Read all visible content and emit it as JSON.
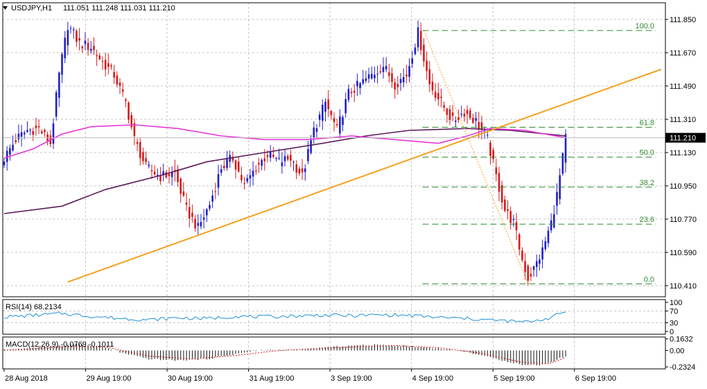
{
  "header": {
    "symbol_text": "USDJPY,H1",
    "ohlc_text": "111.051 111.248 111.031 111.210"
  },
  "colors": {
    "bull": "#1f1fc8",
    "bear": "#d61a1a",
    "ma_fast": "#e636d8",
    "ma_slow": "#5a1a5a",
    "trendline": "#f5a020",
    "fib": "#2f8a2f",
    "rsi": "#1e8fd8",
    "macd_signal": "#d61a1a",
    "macd_hist": "#111111",
    "price_box": "#000000"
  },
  "chart_data": [
    {
      "type": "candlestick",
      "symbol": "USDJPY",
      "timeframe": "H1",
      "ylim": [
        110.35,
        111.94
      ],
      "y_ticks": [
        "111.850",
        "111.670",
        "111.490",
        "111.310",
        "111.130",
        "110.950",
        "110.770",
        "110.590",
        "110.410"
      ],
      "x_ticks": [
        "28 Aug 2018",
        "29 Aug 19:00",
        "30 Aug 19:00",
        "31 Aug 19:00",
        "3 Sep 19:00",
        "4 Sep 19:00",
        "5 Sep 19:00",
        "6 Sep 19:00"
      ],
      "current_price": "111.210",
      "close_series": [
        {
          "bar": 0,
          "value": 111.1
        },
        {
          "bar": 4,
          "value": 111.2
        },
        {
          "bar": 8,
          "value": 111.25
        },
        {
          "bar": 12,
          "value": 111.26
        },
        {
          "bar": 16,
          "value": 111.18
        },
        {
          "bar": 19,
          "value": 111.55
        },
        {
          "bar": 22,
          "value": 111.82
        },
        {
          "bar": 26,
          "value": 111.72
        },
        {
          "bar": 30,
          "value": 111.7
        },
        {
          "bar": 34,
          "value": 111.62
        },
        {
          "bar": 38,
          "value": 111.55
        },
        {
          "bar": 42,
          "value": 111.4
        },
        {
          "bar": 45,
          "value": 111.2
        },
        {
          "bar": 49,
          "value": 111.05
        },
        {
          "bar": 54,
          "value": 111.0
        },
        {
          "bar": 59,
          "value": 111.02
        },
        {
          "bar": 63,
          "value": 110.82
        },
        {
          "bar": 67,
          "value": 110.72
        },
        {
          "bar": 71,
          "value": 110.85
        },
        {
          "bar": 75,
          "value": 111.05
        },
        {
          "bar": 79,
          "value": 111.1
        },
        {
          "bar": 83,
          "value": 110.95
        },
        {
          "bar": 87,
          "value": 111.05
        },
        {
          "bar": 91,
          "value": 111.12
        },
        {
          "bar": 95,
          "value": 111.08
        },
        {
          "bar": 99,
          "value": 111.1
        },
        {
          "bar": 103,
          "value": 111.0
        },
        {
          "bar": 107,
          "value": 111.25
        },
        {
          "bar": 111,
          "value": 111.4
        },
        {
          "bar": 115,
          "value": 111.25
        },
        {
          "bar": 119,
          "value": 111.45
        },
        {
          "bar": 123,
          "value": 111.5
        },
        {
          "bar": 127,
          "value": 111.55
        },
        {
          "bar": 131,
          "value": 111.6
        },
        {
          "bar": 135,
          "value": 111.5
        },
        {
          "bar": 139,
          "value": 111.55
        },
        {
          "bar": 143,
          "value": 111.78
        },
        {
          "bar": 147,
          "value": 111.5
        },
        {
          "bar": 151,
          "value": 111.4
        },
        {
          "bar": 155,
          "value": 111.3
        },
        {
          "bar": 159,
          "value": 111.35
        },
        {
          "bar": 163,
          "value": 111.3
        },
        {
          "bar": 167,
          "value": 111.2
        },
        {
          "bar": 170,
          "value": 111.0
        },
        {
          "bar": 173,
          "value": 110.82
        },
        {
          "bar": 176,
          "value": 110.75
        },
        {
          "bar": 179,
          "value": 110.55
        },
        {
          "bar": 181,
          "value": 110.45
        },
        {
          "bar": 183,
          "value": 110.5
        },
        {
          "bar": 186,
          "value": 110.6
        },
        {
          "bar": 189,
          "value": 110.75
        },
        {
          "bar": 191,
          "value": 110.9
        },
        {
          "bar": 193,
          "value": 111.1
        },
        {
          "bar": 194,
          "value": 111.21
        }
      ],
      "sma_fast": [
        {
          "bar": 0,
          "value": 111.1
        },
        {
          "bar": 10,
          "value": 111.15
        },
        {
          "bar": 20,
          "value": 111.23
        },
        {
          "bar": 30,
          "value": 111.27
        },
        {
          "bar": 45,
          "value": 111.28
        },
        {
          "bar": 60,
          "value": 111.26
        },
        {
          "bar": 75,
          "value": 111.22
        },
        {
          "bar": 90,
          "value": 111.2
        },
        {
          "bar": 105,
          "value": 111.2
        },
        {
          "bar": 120,
          "value": 111.22
        },
        {
          "bar": 135,
          "value": 111.2
        },
        {
          "bar": 150,
          "value": 111.18
        },
        {
          "bar": 160,
          "value": 111.22
        },
        {
          "bar": 168,
          "value": 111.26
        },
        {
          "bar": 180,
          "value": 111.25
        },
        {
          "bar": 194,
          "value": 111.21
        }
      ],
      "sma_slow": [
        {
          "bar": 0,
          "value": 110.8
        },
        {
          "bar": 20,
          "value": 110.84
        },
        {
          "bar": 35,
          "value": 110.93
        },
        {
          "bar": 55,
          "value": 111.01
        },
        {
          "bar": 70,
          "value": 111.08
        },
        {
          "bar": 90,
          "value": 111.13
        },
        {
          "bar": 110,
          "value": 111.18
        },
        {
          "bar": 125,
          "value": 111.22
        },
        {
          "bar": 140,
          "value": 111.25
        },
        {
          "bar": 160,
          "value": 111.26
        },
        {
          "bar": 175,
          "value": 111.25
        },
        {
          "bar": 194,
          "value": 111.22
        }
      ],
      "trendline": [
        {
          "bar": 22,
          "value": 110.43
        },
        {
          "bar": 227,
          "value": 111.58
        }
      ],
      "fib_swing": [
        {
          "bar": 145,
          "value": 111.79
        },
        {
          "bar": 181,
          "value": 110.42
        }
      ],
      "fib_levels": [
        {
          "label": "100.0",
          "value": 111.79
        },
        {
          "label": "61.8",
          "value": 111.267
        },
        {
          "label": "50.0",
          "value": 111.105
        },
        {
          "label": "38.2",
          "value": 110.943
        },
        {
          "label": "23.6",
          "value": 110.743
        },
        {
          "label": "0.0",
          "value": 110.42
        }
      ],
      "grid": true
    },
    {
      "type": "line",
      "indicator": "RSI",
      "title": "RSI(14) 68.2134",
      "ylim": [
        0,
        100
      ],
      "y_ticks": [
        "100",
        "70",
        "30",
        "0"
      ],
      "values": [
        {
          "bar": 0,
          "value": 50
        },
        {
          "bar": 10,
          "value": 55
        },
        {
          "bar": 20,
          "value": 62
        },
        {
          "bar": 30,
          "value": 52
        },
        {
          "bar": 40,
          "value": 45
        },
        {
          "bar": 50,
          "value": 40
        },
        {
          "bar": 60,
          "value": 47
        },
        {
          "bar": 70,
          "value": 44
        },
        {
          "bar": 80,
          "value": 52
        },
        {
          "bar": 90,
          "value": 50
        },
        {
          "bar": 100,
          "value": 53
        },
        {
          "bar": 110,
          "value": 56
        },
        {
          "bar": 120,
          "value": 54
        },
        {
          "bar": 130,
          "value": 57
        },
        {
          "bar": 140,
          "value": 55
        },
        {
          "bar": 150,
          "value": 48
        },
        {
          "bar": 160,
          "value": 44
        },
        {
          "bar": 170,
          "value": 38
        },
        {
          "bar": 180,
          "value": 32
        },
        {
          "bar": 188,
          "value": 45
        },
        {
          "bar": 194,
          "value": 68.2
        }
      ]
    },
    {
      "type": "bar",
      "indicator": "MACD",
      "title": "MACD(12,26,9) -0.0769 -0.1011",
      "ylim": [
        -0.26,
        0.19
      ],
      "y_ticks": [
        "0.1632",
        "0.00",
        "-0.2324"
      ],
      "histogram": [
        {
          "bar": 0,
          "value": 0.01
        },
        {
          "bar": 15,
          "value": 0.05
        },
        {
          "bar": 25,
          "value": 0.09
        },
        {
          "bar": 35,
          "value": 0.04
        },
        {
          "bar": 42,
          "value": -0.05
        },
        {
          "bar": 50,
          "value": -0.12
        },
        {
          "bar": 60,
          "value": -0.14
        },
        {
          "bar": 70,
          "value": -0.12
        },
        {
          "bar": 80,
          "value": -0.05
        },
        {
          "bar": 90,
          "value": 0.01
        },
        {
          "bar": 100,
          "value": 0.0
        },
        {
          "bar": 110,
          "value": 0.04
        },
        {
          "bar": 120,
          "value": 0.07
        },
        {
          "bar": 130,
          "value": 0.08
        },
        {
          "bar": 140,
          "value": 0.06
        },
        {
          "bar": 150,
          "value": 0.03
        },
        {
          "bar": 160,
          "value": -0.02
        },
        {
          "bar": 170,
          "value": -0.12
        },
        {
          "bar": 180,
          "value": -0.21
        },
        {
          "bar": 186,
          "value": -0.2
        },
        {
          "bar": 190,
          "value": -0.15
        },
        {
          "bar": 194,
          "value": -0.077
        }
      ],
      "signal": [
        {
          "bar": 0,
          "value": 0.0
        },
        {
          "bar": 20,
          "value": 0.05
        },
        {
          "bar": 35,
          "value": 0.05
        },
        {
          "bar": 50,
          "value": -0.08
        },
        {
          "bar": 65,
          "value": -0.12
        },
        {
          "bar": 80,
          "value": -0.07
        },
        {
          "bar": 95,
          "value": 0.0
        },
        {
          "bar": 115,
          "value": 0.04
        },
        {
          "bar": 135,
          "value": 0.07
        },
        {
          "bar": 150,
          "value": 0.04
        },
        {
          "bar": 165,
          "value": -0.04
        },
        {
          "bar": 178,
          "value": -0.16
        },
        {
          "bar": 188,
          "value": -0.19
        },
        {
          "bar": 194,
          "value": -0.101
        }
      ]
    }
  ]
}
